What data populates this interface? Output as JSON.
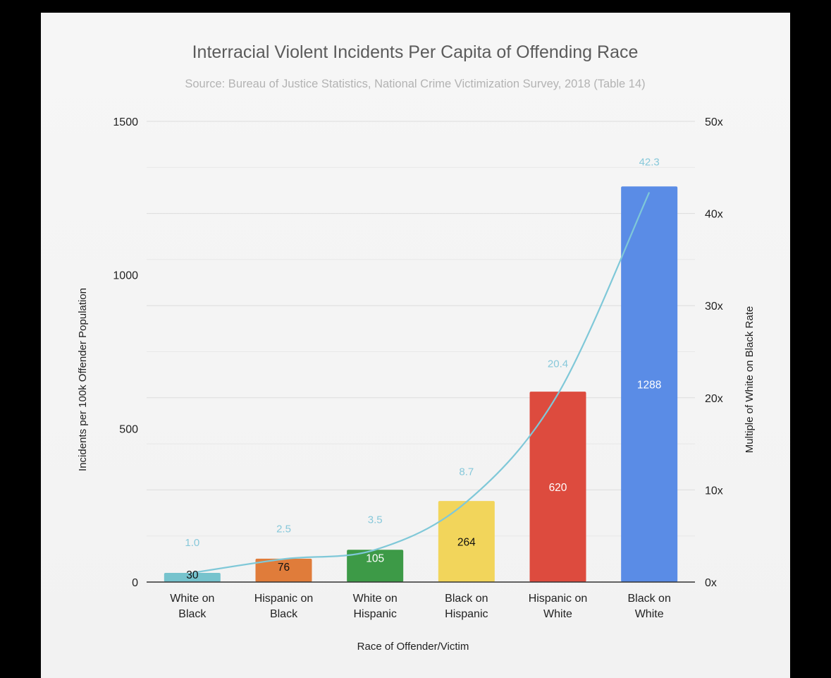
{
  "chart_data": {
    "type": "bar",
    "title": "Interracial Violent Incidents Per Capita of Offending Race",
    "subtitle": "Source: Bureau of Justice Statistics, National Crime Victimization Survey, 2018 (Table 14)",
    "xlabel": "Race of Offender/Victim",
    "ylabel": "Incidents per 100k Offender Population",
    "y2label": "Multiple of White on Black Rate",
    "categories": [
      [
        "White on",
        "Black"
      ],
      [
        "Hispanic on",
        "Black"
      ],
      [
        "White on",
        "Hispanic"
      ],
      [
        "Black on",
        "Hispanic"
      ],
      [
        "Hispanic on",
        "White"
      ],
      [
        "Black on",
        "White"
      ]
    ],
    "series": [
      {
        "kind": "bar",
        "axis": "left",
        "values": [
          30,
          76,
          105,
          264,
          620,
          1288
        ],
        "labels": [
          "30",
          "76",
          "105",
          "264",
          "620",
          "1288"
        ],
        "colors": [
          "#76c3cd",
          "#e07c3a",
          "#3d9a47",
          "#f2d55b",
          "#dd4b3e",
          "#5a8ce6"
        ],
        "label_colors": [
          "#111111",
          "#111111",
          "#ffffff",
          "#111111",
          "#ffffff",
          "#ffffff"
        ]
      },
      {
        "kind": "line",
        "axis": "right",
        "values": [
          1.0,
          2.5,
          3.5,
          8.7,
          20.4,
          42.3
        ],
        "labels": [
          "1.0",
          "2.5",
          "3.5",
          "8.7",
          "20.4",
          "42.3"
        ],
        "color": "#7fc8d8"
      }
    ],
    "ylim": [
      0,
      1500
    ],
    "yticks": [
      "0",
      "500",
      "1000",
      "1500"
    ],
    "y2lim": [
      0,
      50
    ],
    "y2ticks": [
      "0x",
      "10x",
      "20x",
      "30x",
      "40x",
      "50x"
    ],
    "grid": true,
    "legend": "none"
  }
}
